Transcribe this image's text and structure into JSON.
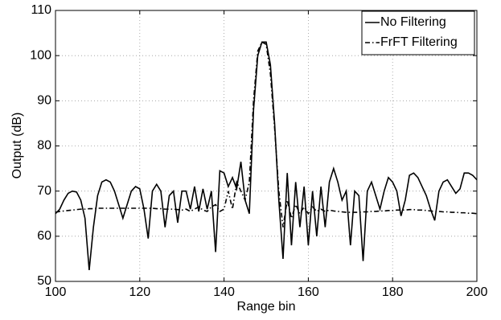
{
  "chart_data": {
    "type": "line",
    "xlabel": "Range bin",
    "ylabel": "Output (dB)",
    "x": [
      100,
      101,
      102,
      103,
      104,
      105,
      106,
      107,
      108,
      109,
      110,
      111,
      112,
      113,
      114,
      115,
      116,
      117,
      118,
      119,
      120,
      121,
      122,
      123,
      124,
      125,
      126,
      127,
      128,
      129,
      130,
      131,
      132,
      133,
      134,
      135,
      136,
      137,
      138,
      139,
      140,
      141,
      142,
      143,
      144,
      145,
      146,
      147,
      148,
      149,
      150,
      151,
      152,
      153,
      154,
      155,
      156,
      157,
      158,
      159,
      160,
      161,
      162,
      163,
      164,
      165,
      166,
      167,
      168,
      169,
      170,
      171,
      172,
      173,
      174,
      175,
      176,
      177,
      178,
      179,
      180,
      181,
      182,
      183,
      184,
      185,
      186,
      187,
      188,
      189,
      190,
      191,
      192,
      193,
      194,
      195,
      196,
      197,
      198,
      199,
      200
    ],
    "series": [
      {
        "name": "No Filtering",
        "color": "#000000",
        "dash": "solid",
        "values": [
          65,
          66,
          68,
          69.5,
          70,
          69.8,
          68,
          64,
          52.5,
          62,
          69,
          72,
          72.5,
          72,
          70,
          67,
          64,
          67,
          70,
          71,
          70.5,
          66,
          59.5,
          70,
          71.5,
          70,
          62,
          69,
          70,
          63,
          70,
          70,
          66,
          71,
          65.5,
          70.5,
          66,
          70,
          56.5,
          74.5,
          74,
          71,
          73,
          70.5,
          76.5,
          68,
          65,
          88,
          100,
          103,
          103,
          98,
          85,
          68,
          55,
          74,
          58,
          72,
          62,
          71,
          58,
          70,
          60,
          71,
          62,
          72,
          75,
          72,
          68,
          70,
          58,
          70,
          69,
          54.5,
          70,
          72,
          69,
          66,
          70,
          73,
          72,
          70,
          64.5,
          68,
          73.5,
          74,
          73,
          71,
          69,
          66,
          63.5,
          70,
          72,
          72.5,
          71,
          69.5,
          70.5,
          74,
          74,
          73.5,
          72.5
        ]
      },
      {
        "name": "FrFT Filtering",
        "color": "#000000",
        "dash": "dashdot",
        "values": [
          65.3,
          65.5,
          65.6,
          65.7,
          65.8,
          65.9,
          66,
          66,
          66.1,
          66.1,
          66.2,
          66.2,
          66.2,
          66.2,
          66.2,
          66.2,
          66.2,
          66.2,
          66.2,
          66.2,
          66.2,
          66.2,
          66.2,
          66.2,
          66.1,
          66.1,
          66,
          66,
          66,
          65.9,
          65.8,
          66,
          65.5,
          66,
          66.5,
          65.8,
          65.5,
          66.5,
          67,
          65.5,
          66,
          70,
          66,
          72,
          70,
          68,
          72,
          90,
          101,
          103,
          102.5,
          96,
          84,
          70,
          62,
          68,
          64,
          67,
          65,
          66.5,
          65,
          66.5,
          65.5,
          66,
          65.5,
          65.8,
          65.6,
          65.5,
          65.4,
          65.3,
          65.3,
          65.3,
          65.3,
          65.4,
          65.4,
          65.5,
          65.5,
          65.6,
          65.6,
          65.7,
          65.7,
          65.8,
          65.8,
          65.8,
          65.9,
          65.9,
          65.8,
          65.8,
          65.7,
          65.6,
          65.5,
          65.5,
          65.4,
          65.4,
          65.3,
          65.3,
          65.2,
          65.2,
          65.1,
          65.1,
          65
        ]
      }
    ],
    "xlim": [
      100,
      200
    ],
    "xticks": [
      100,
      120,
      140,
      160,
      180,
      200
    ],
    "ylim": [
      50,
      110
    ],
    "yticks": [
      50,
      60,
      70,
      80,
      90,
      100,
      110
    ],
    "grid": true,
    "legend": "upper right"
  }
}
